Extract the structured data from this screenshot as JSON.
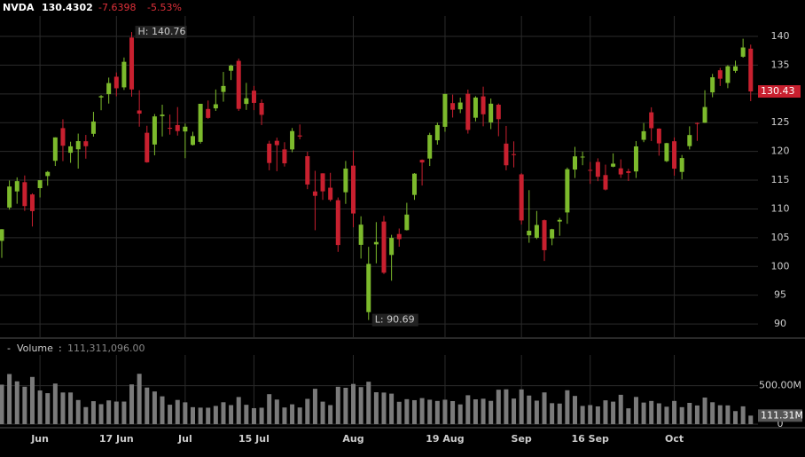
{
  "chart_data": {
    "type": "candlestick",
    "symbol": "NVDA",
    "last": "130.4302",
    "change": "-7.6398",
    "change_pct": "-5.53%",
    "last_price_label": "130.43",
    "high_label": "H: 140.76",
    "low_label": "L: 90.69",
    "grid": true,
    "up_color": "#7cba2c",
    "down_color": "#c8202f",
    "categories": [
      null,
      null,
      null,
      null,
      null,
      "Jun",
      null,
      null,
      null,
      null,
      null,
      null,
      null,
      null,
      null,
      "17 Jun",
      null,
      null,
      null,
      null,
      null,
      null,
      null,
      null,
      "Jul",
      null,
      null,
      null,
      null,
      null,
      null,
      null,
      null,
      "15 Jul",
      null,
      null,
      null,
      null,
      null,
      null,
      null,
      null,
      null,
      null,
      null,
      null,
      "Aug",
      null,
      null,
      null,
      null,
      null,
      null,
      null,
      null,
      null,
      null,
      null,
      "19 Aug",
      null,
      null,
      null,
      null,
      null,
      null,
      null,
      null,
      null,
      "Sep",
      null,
      null,
      null,
      null,
      null,
      null,
      null,
      null,
      "16 Sep",
      null,
      null,
      null,
      null,
      null,
      null,
      null,
      null,
      null,
      null,
      "Oct",
      null,
      null,
      null,
      null,
      null,
      null,
      null,
      null,
      null,
      null
    ],
    "open": [
      104.45,
      110.24,
      113.05,
      114.65,
      112.52,
      113.62,
      115.72,
      118.37,
      124.05,
      119.77,
      120.37,
      121.77,
      123.06,
      129.39,
      129.96,
      132.99,
      131.14,
      139.8,
      127.12,
      123.24,
      121.2,
      126.13,
      124.1,
      124.58,
      123.47,
      121.13,
      121.66,
      127.38,
      127.49,
      130.35,
      134.03,
      135.75,
      128.26,
      130.56,
      128.44,
      121.35,
      121.85,
      120.35,
      120.35,
      122.78,
      119.17,
      113.04,
      116.19,
      113.69,
      111.52,
      112.9,
      117.53,
      103.76,
      92.06,
      103.84,
      107.81,
      102.0,
      105.64,
      106.32,
      112.44,
      118.53,
      118.76,
      121.94,
      124.28,
      128.4,
      127.32,
      130.02,
      125.86,
      129.57,
      125.05,
      128.12,
      121.36,
      119.53,
      116.01,
      105.41,
      104.99,
      108.04,
      104.88,
      107.81,
      109.39,
      116.85,
      119.08,
      116.79,
      118.17,
      115.89,
      117.35,
      117.06,
      116.55,
      116.52,
      122.02,
      126.8,
      123.97,
      118.31,
      121.77,
      116.44,
      120.92,
      124.94,
      124.99,
      130.26,
      134.11,
      131.91,
      134.01,
      136.47,
      137.87
    ],
    "high": [
      106.48,
      114.94,
      115.49,
      115.82,
      112.72,
      115.0,
      116.6,
      122.45,
      125.59,
      121.69,
      123.1,
      122.87,
      126.88,
      129.8,
      132.84,
      133.73,
      136.33,
      140.76,
      130.63,
      124.46,
      126.5,
      128.12,
      126.41,
      127.71,
      124.84,
      123.41,
      128.28,
      128.85,
      130.77,
      133.82,
      135.1,
      136.15,
      131.92,
      131.39,
      129.04,
      121.85,
      122.4,
      121.6,
      124.07,
      124.69,
      119.95,
      116.63,
      116.2,
      116.28,
      111.99,
      118.34,
      120.16,
      108.72,
      103.41,
      107.71,
      108.8,
      105.5,
      106.6,
      111.07,
      116.23,
      118.6,
      123.24,
      125.0,
      130.0,
      129.88,
      129.35,
      130.75,
      129.6,
      131.26,
      129.2,
      128.33,
      124.43,
      121.75,
      116.21,
      113.27,
      109.65,
      108.15,
      106.55,
      108.45,
      117.19,
      120.79,
      119.96,
      118.18,
      118.8,
      117.7,
      119.66,
      118.62,
      116.99,
      121.8,
      124.94,
      127.67,
      124.03,
      121.5,
      122.44,
      119.38,
      124.36,
      125.04,
      130.64,
      133.48,
      134.52,
      135.0,
      135.78,
      139.6,
      138.57
    ],
    "low": [
      101.48,
      109.88,
      110.9,
      109.66,
      106.94,
      112.0,
      114.04,
      117.47,
      118.32,
      118.02,
      117.01,
      118.74,
      122.57,
      127.16,
      128.32,
      129.58,
      130.69,
      129.52,
      124.3,
      118.04,
      119.32,
      122.6,
      122.92,
      122.75,
      118.83,
      121.03,
      121.36,
      125.68,
      127.04,
      128.65,
      132.42,
      127.05,
      127.22,
      127.18,
      124.58,
      116.72,
      116.56,
      117.37,
      119.86,
      122.1,
      113.44,
      106.3,
      111.58,
      111.3,
      102.54,
      110.88,
      106.81,
      101.37,
      90.69,
      100.55,
      98.69,
      97.52,
      103.43,
      106.26,
      111.58,
      114.07,
      117.47,
      121.18,
      123.42,
      125.89,
      126.66,
      123.1,
      125.22,
      124.37,
      123.88,
      122.64,
      116.71,
      117.22,
      107.29,
      104.12,
      104.76,
      100.95,
      103.69,
      105.34,
      107.42,
      115.38,
      117.6,
      114.36,
      114.83,
      113.22,
      117.25,
      115.39,
      114.86,
      115.38,
      121.61,
      121.8,
      119.26,
      118.15,
      115.79,
      115.14,
      120.34,
      121.83,
      124.95,
      129.42,
      131.38,
      131.0,
      133.66,
      136.3,
      128.74
    ],
    "close": [
      106.47,
      113.9,
      114.83,
      110.5,
      109.63,
      115.0,
      116.44,
      122.44,
      120.99,
      120.89,
      121.79,
      120.91,
      125.2,
      129.61,
      131.88,
      130.98,
      135.58,
      130.78,
      126.57,
      118.11,
      126.09,
      126.4,
      123.99,
      123.54,
      124.3,
      122.67,
      128.28,
      125.83,
      128.2,
      131.38,
      134.91,
      127.4,
      129.24,
      128.44,
      126.36,
      117.99,
      121.09,
      117.93,
      123.54,
      122.59,
      114.25,
      112.28,
      113.06,
      111.59,
      103.73,
      117.02,
      109.21,
      107.27,
      100.45,
      104.25,
      98.91,
      104.97,
      104.75,
      109.02,
      116.14,
      118.08,
      122.86,
      124.58,
      130.0,
      127.25,
      128.5,
      123.74,
      129.37,
      126.46,
      128.3,
      125.61,
      117.59,
      119.37,
      108.0,
      106.21,
      107.21,
      102.83,
      106.47,
      108.1,
      116.91,
      119.14,
      119.1,
      116.78,
      115.59,
      113.37,
      117.87,
      116.0,
      116.26,
      120.87,
      123.51,
      124.04,
      121.4,
      121.44,
      117.0,
      118.85,
      122.85,
      124.92,
      127.72,
      132.89,
      132.65,
      134.81,
      134.8,
      138.07,
      130.43
    ],
    "ylim": [
      87.7,
      143.55
    ],
    "yticks": [
      90,
      95,
      100,
      105,
      110,
      115,
      120,
      125,
      130,
      135,
      140
    ],
    "volume_title": "Volume",
    "volume_current": "111,311,096.00",
    "volume_last_label": "111.31M",
    "volume_color": "#7a7a7a",
    "volume": [
      514000000,
      652000000,
      557000000,
      487000000,
      614000000,
      438000000,
      403000000,
      528000000,
      412000000,
      412000000,
      314000000,
      222000000,
      299000000,
      260000000,
      309000000,
      294000000,
      294000000,
      517000000,
      655000000,
      476000000,
      425000000,
      362000000,
      253000000,
      315000000,
      284000000,
      221000000,
      215000000,
      214000000,
      237000000,
      285000000,
      248000000,
      353000000,
      252000000,
      208000000,
      214000000,
      390000000,
      320000000,
      217000000,
      258000000,
      217000000,
      329000000,
      460000000,
      293000000,
      248000000,
      486000000,
      473000000,
      523000000,
      482000000,
      552000000,
      415000000,
      411000000,
      397000000,
      291000000,
      325000000,
      312000000,
      339000000,
      318000000,
      302000000,
      318000000,
      300000000,
      257000000,
      376000000,
      323000000,
      331000000,
      303000000,
      448000000,
      453000000,
      333000000,
      452000000,
      372000000,
      306000000,
      413000000,
      273000000,
      268000000,
      441000000,
      367000000,
      237000000,
      248000000,
      231000000,
      310000000,
      293000000,
      382000000,
      206000000,
      354000000,
      281000000,
      302000000,
      271000000,
      227000000,
      302000000,
      221000000,
      277000000,
      243000000,
      346000000,
      285000000,
      246000000,
      244000000,
      170000000,
      232000000,
      111311096
    ],
    "vlim": [
      0,
      900000000
    ],
    "vticks": [
      0,
      {
        "value": 500000000,
        "label": "500.00M"
      }
    ]
  }
}
